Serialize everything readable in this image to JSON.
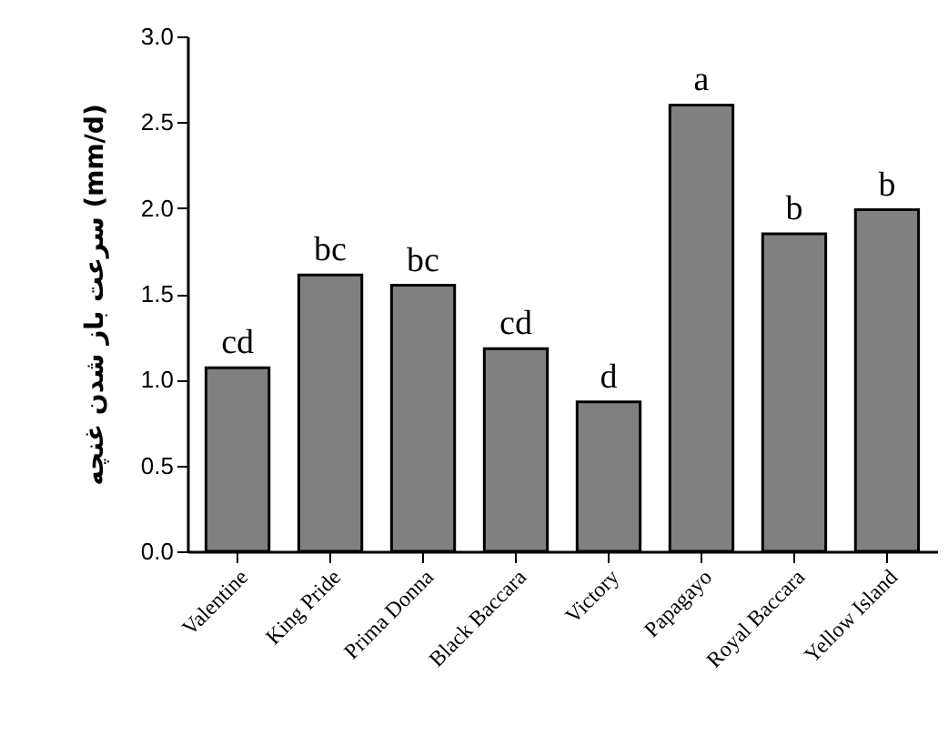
{
  "chart_data": {
    "type": "bar",
    "ylabel": "سرعت باز شدن غنچه (mm/d)",
    "categories": [
      "Valentine",
      "King Pride",
      "Prima Donna",
      "Black Baccara",
      "Victory",
      "Papagayo",
      "Royal Baccara",
      "Yellow Island"
    ],
    "values": [
      1.07,
      1.61,
      1.55,
      1.18,
      0.87,
      2.6,
      1.85,
      1.99
    ],
    "color": "#808080",
    "ylim": [
      0,
      3
    ],
    "yticks": [
      {
        "value": 0,
        "label": "0.0"
      },
      {
        "value": 0.5,
        "label": "0.5"
      },
      {
        "value": 1,
        "label": "1.0"
      },
      {
        "value": 1.5,
        "label": "1.5"
      },
      {
        "value": 2,
        "label": "2.0"
      },
      {
        "value": 2.5,
        "label": "2.5"
      },
      {
        "value": 3,
        "label": "3.0"
      }
    ],
    "grid": false,
    "annotations": [
      {
        "text": "cd",
        "x": "Valentine",
        "y": 1.07
      },
      {
        "text": "bc",
        "x": "King Pride",
        "y": 1.61
      },
      {
        "text": "bc",
        "x": "Prima Donna",
        "y": 1.55
      },
      {
        "text": "cd",
        "x": "Black Baccara",
        "y": 1.18
      },
      {
        "text": "d",
        "x": "Victory",
        "y": 0.87
      },
      {
        "text": "a",
        "x": "Papagayo",
        "y": 2.6
      },
      {
        "text": "b",
        "x": "Royal Baccara",
        "y": 1.85
      },
      {
        "text": "b",
        "x": "Yellow Island",
        "y": 1.99
      }
    ]
  }
}
